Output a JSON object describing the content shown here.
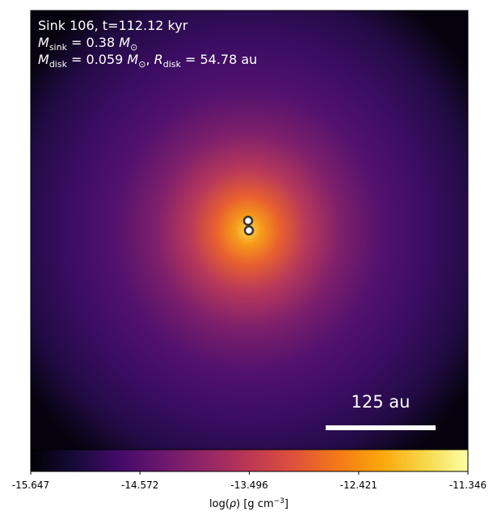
{
  "chart_data": {
    "type": "image",
    "title_lines": [
      [
        "Sink 106, t=112.12 kyr"
      ],
      [
        "M",
        "sink",
        " = 0.38 ",
        "M",
        "⊙"
      ],
      [
        "M",
        "disk",
        " = 0.059 ",
        "M",
        "⊙",
        ", ",
        "R",
        "disk",
        " = 54.78 au"
      ]
    ],
    "scale_bar_label": "125 au",
    "colorbar": {
      "label": [
        "log(",
        "ρ",
        ") [g cm",
        "−3",
        "]"
      ],
      "clim": [
        -15.647,
        -11.346
      ],
      "ticks": [
        -15.647,
        -14.572,
        -13.496,
        -12.421,
        -11.346
      ],
      "colormap": "inferno"
    }
  }
}
